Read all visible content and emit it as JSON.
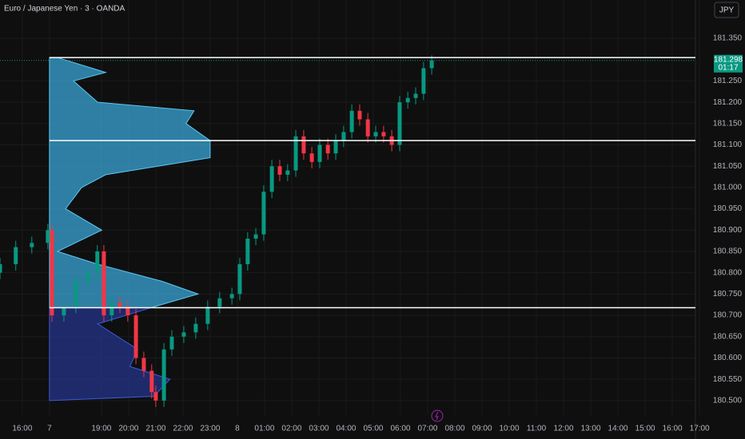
{
  "chart_data": {
    "type": "candlestick",
    "title": "Euro / Japanese Yen · 3 · OANDA",
    "currency": "JPY",
    "last_price": {
      "value": 181.298,
      "label": "181.298"
    },
    "countdown": "01:17",
    "up_color": "#089981",
    "down_color": "#f23645",
    "xlim": [
      -1.82,
      23.76
    ],
    "xticks": [
      {
        "value": -1,
        "label": "16:00"
      },
      {
        "value": 0,
        "label": "7"
      },
      {
        "value": 1.91,
        "label": "19:00"
      },
      {
        "value": 2.91,
        "label": "20:00"
      },
      {
        "value": 3.91,
        "label": "21:00"
      },
      {
        "value": 4.91,
        "label": "22:00"
      },
      {
        "value": 5.91,
        "label": "23:00"
      },
      {
        "value": 6.91,
        "label": "8"
      },
      {
        "value": 7.91,
        "label": "01:00"
      },
      {
        "value": 8.91,
        "label": "02:00"
      },
      {
        "value": 9.91,
        "label": "03:00"
      },
      {
        "value": 10.91,
        "label": "04:00"
      },
      {
        "value": 11.91,
        "label": "05:00"
      },
      {
        "value": 12.91,
        "label": "06:00"
      },
      {
        "value": 13.91,
        "label": "07:00"
      },
      {
        "value": 14.91,
        "label": "08:00"
      },
      {
        "value": 15.91,
        "label": "09:00"
      },
      {
        "value": 16.91,
        "label": "10:00"
      },
      {
        "value": 17.91,
        "label": "11:00"
      },
      {
        "value": 18.91,
        "label": "12:00"
      },
      {
        "value": 19.91,
        "label": "13:00"
      },
      {
        "value": 20.91,
        "label": "14:00"
      },
      {
        "value": 21.91,
        "label": "15:00"
      },
      {
        "value": 22.91,
        "label": "16:00"
      },
      {
        "value": 23.91,
        "label": "17:00"
      }
    ],
    "ylim": [
      180.466,
      181.44
    ],
    "yticks": [
      {
        "value": 181.35,
        "label": "181.350"
      },
      {
        "value": 181.25,
        "label": "181.250"
      },
      {
        "value": 181.2,
        "label": "181.200"
      },
      {
        "value": 181.15,
        "label": "181.150"
      },
      {
        "value": 181.1,
        "label": "181.100"
      },
      {
        "value": 181.05,
        "label": "181.050"
      },
      {
        "value": 181,
        "label": "181.000"
      },
      {
        "value": 180.95,
        "label": "180.950"
      },
      {
        "value": 180.9,
        "label": "180.900"
      },
      {
        "value": 180.85,
        "label": "180.850"
      },
      {
        "value": 180.8,
        "label": "180.800"
      },
      {
        "value": 180.75,
        "label": "180.750"
      },
      {
        "value": 180.7,
        "label": "180.700"
      },
      {
        "value": 180.65,
        "label": "180.650"
      },
      {
        "value": 180.6,
        "label": "180.600"
      },
      {
        "value": 180.55,
        "label": "180.550"
      },
      {
        "value": 180.5,
        "label": "180.500"
      }
    ],
    "grid": true,
    "levels": [
      181.305,
      181.11,
      180.718
    ],
    "x": [
      -1.82,
      -1.24,
      -0.65,
      -0.06,
      0.09,
      0.53,
      0.97,
      1.41,
      1.76,
      2.0,
      2.29,
      2.59,
      2.88,
      3.18,
      3.47,
      3.76,
      3.91,
      4.21,
      4.5,
      4.94,
      5.38,
      5.82,
      6.26,
      6.71,
      7.0,
      7.29,
      7.59,
      7.88,
      8.18,
      8.47,
      8.76,
      9.06,
      9.35,
      9.65,
      9.94,
      10.24,
      10.53,
      10.82,
      11.12,
      11.41,
      11.71,
      12.0,
      12.29,
      12.59,
      12.88,
      13.18,
      13.47,
      13.76,
      14.06
    ],
    "open": [
      180.8,
      180.82,
      180.86,
      180.87,
      180.9,
      180.7,
      180.72,
      180.78,
      180.8,
      180.85,
      180.7,
      180.73,
      180.72,
      180.7,
      180.6,
      180.57,
      180.52,
      180.5,
      180.62,
      180.65,
      180.66,
      180.68,
      180.72,
      180.74,
      180.75,
      180.82,
      180.88,
      180.89,
      180.99,
      181.05,
      181.03,
      181.04,
      181.12,
      181.08,
      181.06,
      181.1,
      181.08,
      181.11,
      181.13,
      181.18,
      181.16,
      181.12,
      181.13,
      181.12,
      181.1,
      181.2,
      181.21,
      181.22,
      181.28
    ],
    "high": [
      180.835,
      180.875,
      180.885,
      180.915,
      180.915,
      180.735,
      180.795,
      180.815,
      180.865,
      180.865,
      180.745,
      180.745,
      180.735,
      180.715,
      180.615,
      180.585,
      180.535,
      180.635,
      180.665,
      180.675,
      180.695,
      180.735,
      180.755,
      180.765,
      180.835,
      180.895,
      180.905,
      181.005,
      181.065,
      181.065,
      181.055,
      181.135,
      181.135,
      181.095,
      181.115,
      181.115,
      181.125,
      181.145,
      181.195,
      181.195,
      181.175,
      181.145,
      181.145,
      181.135,
      181.215,
      181.225,
      181.235,
      181.295,
      181.31
    ],
    "low": [
      180.785,
      180.805,
      180.845,
      180.855,
      180.685,
      180.685,
      180.705,
      180.765,
      180.785,
      180.685,
      180.685,
      180.705,
      180.685,
      180.585,
      180.555,
      180.505,
      180.485,
      180.485,
      180.605,
      180.635,
      180.645,
      180.665,
      180.705,
      180.725,
      180.735,
      180.805,
      180.865,
      180.875,
      180.975,
      181.015,
      181.015,
      181.025,
      181.065,
      181.045,
      181.045,
      181.065,
      181.065,
      181.095,
      181.115,
      181.145,
      181.105,
      181.105,
      181.105,
      181.085,
      181.085,
      181.185,
      181.195,
      181.205,
      181.265
    ],
    "close": [
      180.82,
      180.86,
      180.87,
      180.9,
      180.7,
      180.72,
      180.78,
      180.8,
      180.85,
      180.7,
      180.73,
      180.72,
      180.7,
      180.6,
      180.57,
      180.52,
      180.5,
      180.62,
      180.65,
      180.66,
      180.68,
      180.72,
      180.74,
      180.75,
      180.82,
      180.88,
      180.89,
      180.99,
      181.05,
      181.03,
      181.04,
      181.12,
      181.08,
      181.06,
      181.1,
      181.08,
      181.11,
      181.13,
      181.18,
      181.16,
      181.12,
      181.13,
      181.12,
      181.1,
      181.2,
      181.21,
      181.22,
      181.28,
      181.298
    ],
    "volume_profile": {
      "prices": [
        181.305,
        181.27,
        181.25,
        181.2,
        181.18,
        181.15,
        181.11,
        181.07,
        181.03,
        181.0,
        180.95,
        180.9,
        180.85,
        180.82,
        180.78,
        180.75,
        180.72,
        180.68,
        180.62,
        180.58,
        180.55,
        180.51,
        180.5
      ],
      "volumes": [
        10,
        70,
        30,
        60,
        180,
        170,
        200,
        200,
        70,
        40,
        20,
        65,
        10,
        60,
        140,
        185,
        130,
        60,
        110,
        100,
        150,
        130,
        0
      ],
      "xlim": [
        0,
        200
      ],
      "split": 180.718,
      "upper_color": "#3aa5d6",
      "lower_color": "#24348a"
    }
  }
}
